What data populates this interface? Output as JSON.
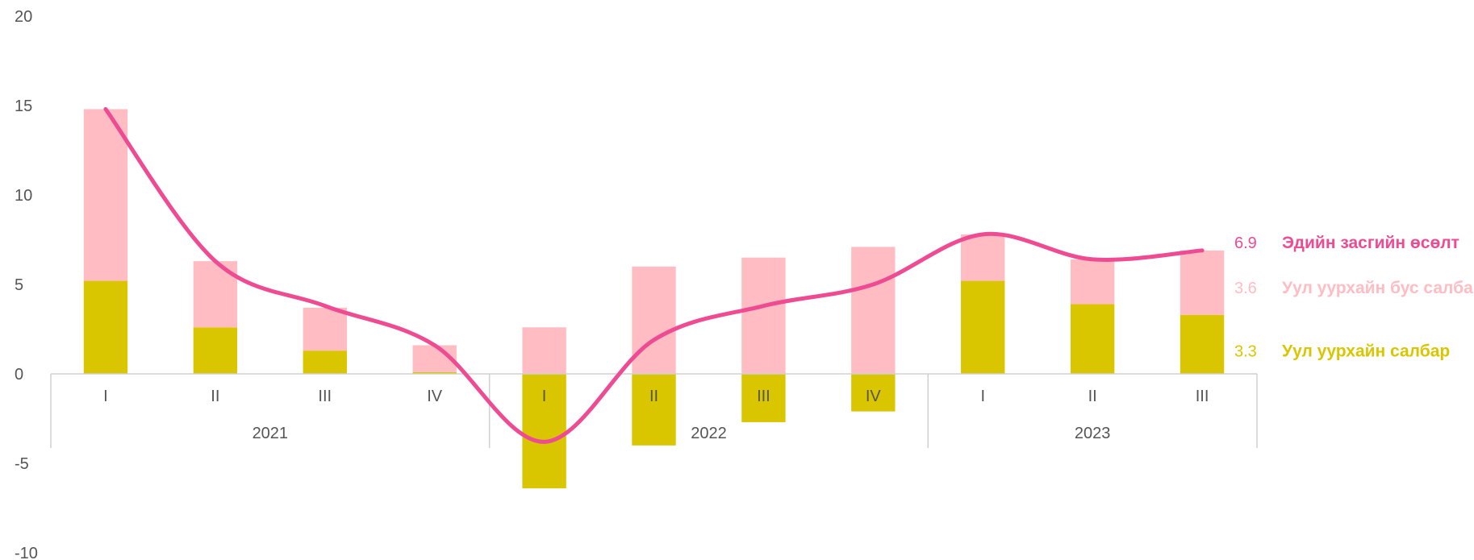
{
  "chart_data": {
    "type": "bar",
    "stacked": true,
    "title": "",
    "xlabel": "",
    "ylabel": "",
    "ylim": [
      -10,
      20
    ],
    "yticks": [
      -10,
      -5,
      0,
      5,
      10,
      15,
      20
    ],
    "grid": false,
    "groups": [
      {
        "label": "2021",
        "categories": [
          "I",
          "II",
          "III",
          "IV"
        ]
      },
      {
        "label": "2022",
        "categories": [
          "I",
          "II",
          "III",
          "IV"
        ]
      },
      {
        "label": "2023",
        "categories": [
          "I",
          "II",
          "III"
        ]
      }
    ],
    "series": [
      {
        "name": "Уул уурхайн салбар",
        "type": "bar",
        "color": "#D9C500",
        "values": [
          5.2,
          2.6,
          1.3,
          0.1,
          -6.4,
          -4.0,
          -2.7,
          -2.1,
          5.2,
          3.9,
          3.3
        ]
      },
      {
        "name": "Уул уурхайн бус салбар",
        "type": "bar",
        "color": "#FFBCC3",
        "values": [
          9.6,
          3.7,
          2.4,
          1.5,
          2.6,
          6.0,
          6.5,
          7.1,
          2.6,
          2.5,
          3.6
        ]
      },
      {
        "name": "Эдийн засгийн өсөлт",
        "type": "line",
        "color": "#EE4B93",
        "values": [
          14.8,
          6.3,
          3.8,
          1.6,
          -3.8,
          1.9,
          3.8,
          5.0,
          7.8,
          6.4,
          6.9
        ]
      }
    ],
    "end_labels": [
      {
        "value": "6.9",
        "name": "Эдийн засгийн өсөлт",
        "color": "#EE4B93",
        "value_color": "#EE4B93"
      },
      {
        "value": "3.6",
        "name": "Уул уурхайн бус салбар",
        "color": "#FFBCC3",
        "value_color": "#FFBCC3"
      },
      {
        "value": "3.3",
        "name": "Уул уурхайн салбар",
        "color": "#D9C500",
        "value_color": "#D9C500"
      }
    ]
  }
}
